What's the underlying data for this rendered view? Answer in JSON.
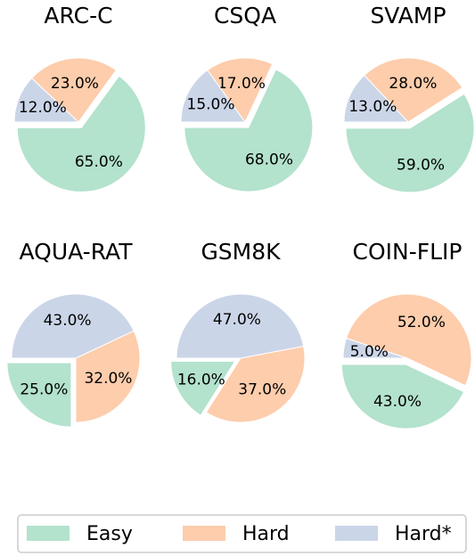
{
  "chart_data": [
    {
      "type": "pie",
      "title": "ARC-C",
      "categories": [
        "Easy",
        "Hard",
        "Hard*"
      ],
      "values": [
        65,
        23,
        12
      ],
      "value_labels": [
        "65.0%",
        "23.0%",
        "12.0%"
      ],
      "colors": [
        "#b3e2cd",
        "#fdcdac",
        "#cbd5e8"
      ]
    },
    {
      "type": "pie",
      "title": "CSQA",
      "categories": [
        "Easy",
        "Hard",
        "Hard*"
      ],
      "values": [
        68,
        17,
        15
      ],
      "value_labels": [
        "68.0%",
        "17.0%",
        "15.0%"
      ],
      "colors": [
        "#b3e2cd",
        "#fdcdac",
        "#cbd5e8"
      ]
    },
    {
      "type": "pie",
      "title": "SVAMP",
      "categories": [
        "Easy",
        "Hard",
        "Hard*"
      ],
      "values": [
        59,
        28,
        13
      ],
      "value_labels": [
        "59.0%",
        "28.0%",
        "13.0%"
      ],
      "colors": [
        "#b3e2cd",
        "#fdcdac",
        "#cbd5e8"
      ]
    },
    {
      "type": "pie",
      "title": "AQUA-RAT",
      "categories": [
        "Easy",
        "Hard",
        "Hard*"
      ],
      "values": [
        25,
        32,
        43
      ],
      "value_labels": [
        "25.0%",
        "32.0%",
        "43.0%"
      ],
      "colors": [
        "#b3e2cd",
        "#fdcdac",
        "#cbd5e8"
      ]
    },
    {
      "type": "pie",
      "title": "GSM8K",
      "categories": [
        "Easy",
        "Hard",
        "Hard*"
      ],
      "values": [
        16,
        37,
        47
      ],
      "value_labels": [
        "16.0%",
        "37.0%",
        "47.0%"
      ],
      "colors": [
        "#b3e2cd",
        "#fdcdac",
        "#cbd5e8"
      ]
    },
    {
      "type": "pie",
      "title": "COIN-FLIP",
      "categories": [
        "Easy",
        "Hard",
        "Hard*"
      ],
      "values": [
        43,
        52,
        5
      ],
      "value_labels": [
        "43.0%",
        "52.0%",
        "5.0%"
      ],
      "colors": [
        "#b3e2cd",
        "#fdcdac",
        "#cbd5e8"
      ]
    }
  ]
}
